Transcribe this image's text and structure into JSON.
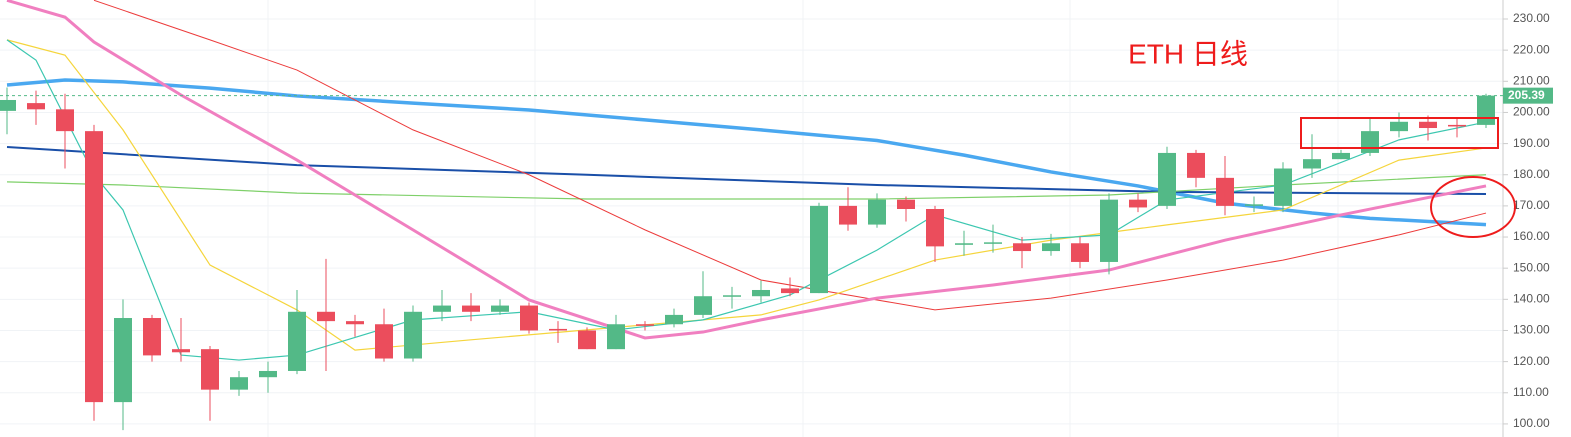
{
  "chart_data": {
    "type": "candlestick",
    "annotation": "ETH 日线",
    "up_color": "#53b987",
    "down_color": "#eb4d5c",
    "ylim": [
      95.8,
      236.1
    ],
    "yticks": [
      {
        "value": 100,
        "label": "100.00"
      },
      {
        "value": 110,
        "label": "110.00"
      },
      {
        "value": 120,
        "label": "120.00"
      },
      {
        "value": 130,
        "label": "130.00"
      },
      {
        "value": 140,
        "label": "140.00"
      },
      {
        "value": 150,
        "label": "150.00"
      },
      {
        "value": 160,
        "label": "160.00"
      },
      {
        "value": 170,
        "label": "170.00"
      },
      {
        "value": 180,
        "label": "180.00"
      },
      {
        "value": 190,
        "label": "190.00"
      },
      {
        "value": 200,
        "label": "200.00"
      },
      {
        "value": 210,
        "label": "210.00"
      },
      {
        "value": 220,
        "label": "220.00"
      },
      {
        "value": 230,
        "label": "230.00"
      }
    ],
    "grid": true,
    "last_price": 205.39,
    "categories": [
      null,
      null,
      null,
      null,
      null,
      null,
      null,
      null,
      null,
      null,
      null,
      null,
      null,
      null,
      null,
      null,
      null,
      null,
      null,
      null,
      null,
      null,
      null,
      null,
      null,
      null,
      null,
      null,
      null,
      null,
      null,
      null,
      null,
      null,
      null,
      null,
      null,
      null,
      null,
      null,
      null,
      null,
      null,
      null,
      null,
      null,
      null,
      null,
      null,
      null,
      null,
      null
    ],
    "open": [
      200.5,
      203,
      201,
      194,
      107,
      134,
      124,
      124,
      111,
      115,
      117,
      136,
      133,
      132,
      121,
      136,
      138,
      136,
      138,
      130.5,
      130,
      124,
      132,
      132,
      135,
      141,
      141,
      143.5,
      142,
      170,
      164,
      172,
      169,
      157.5,
      158,
      158,
      155.5,
      158,
      152,
      172,
      170,
      187,
      179,
      170,
      170,
      182,
      185,
      187,
      194,
      197,
      196,
      196
    ],
    "high": [
      208,
      207,
      206,
      196,
      140,
      135,
      134,
      125,
      117,
      120,
      143,
      153,
      135,
      137,
      138,
      143,
      142,
      140,
      139,
      133,
      131,
      135,
      133,
      137,
      149,
      144,
      146,
      147,
      171,
      176,
      174,
      173,
      170,
      162,
      164,
      160,
      161,
      160,
      174,
      174,
      189,
      188,
      186,
      173,
      184,
      193,
      188,
      198,
      200,
      199,
      198,
      206
    ],
    "low": [
      193,
      196,
      182,
      101,
      98,
      120,
      120,
      101,
      109,
      110,
      116,
      117,
      128,
      120,
      120,
      133,
      133,
      135,
      129,
      126,
      124,
      124,
      130,
      131,
      134,
      137,
      139,
      141,
      142,
      162,
      163,
      165,
      152,
      154,
      155,
      150,
      154,
      150,
      148,
      168,
      169,
      176,
      167,
      168,
      168,
      179,
      185,
      186,
      192,
      191,
      192,
      195
    ],
    "close": [
      204,
      201,
      194,
      107,
      134,
      122,
      123,
      111,
      115,
      117,
      136,
      133,
      132,
      121,
      136,
      138,
      136,
      138,
      130,
      130,
      124,
      132,
      131.5,
      135,
      141,
      141.3,
      143,
      142,
      170,
      164,
      172,
      169,
      157,
      158,
      158.3,
      155.5,
      158,
      152,
      172,
      169.5,
      187,
      179,
      170,
      170.5,
      182,
      185,
      187,
      194,
      197,
      195,
      195.5,
      205.39
    ],
    "lines": [
      {
        "color": "#4aa8f0",
        "width": 3.5,
        "x": [
          0,
          2,
          4,
          7,
          10,
          14,
          18,
          22,
          26,
          30,
          33,
          36,
          39,
          42,
          45,
          47,
          51
        ],
        "values": [
          208.8,
          210.4,
          209.8,
          207.8,
          205.3,
          203,
          200.8,
          197.6,
          194.4,
          191,
          186.3,
          180.9,
          176.4,
          170.9,
          167.7,
          166,
          164
        ]
      },
      {
        "color": "#1a4fa8",
        "width": 2,
        "x": [
          0,
          10,
          20,
          30,
          40,
          51
        ],
        "values": [
          188.9,
          183.1,
          180,
          176.7,
          174.5,
          173.8
        ]
      },
      {
        "color": "#7fd06a",
        "width": 1.2,
        "x": [
          0,
          4,
          10,
          20,
          30,
          38,
          44,
          51
        ],
        "values": [
          177.7,
          176.7,
          174.1,
          172.2,
          172.2,
          173.5,
          176.7,
          180
        ]
      },
      {
        "color": "#ec3b3b",
        "width": 1,
        "x": [
          3,
          7,
          10,
          14,
          18,
          22,
          26,
          30,
          32,
          36,
          40,
          44,
          48,
          51
        ],
        "values": [
          236,
          223.3,
          213.6,
          194.4,
          180,
          162.3,
          146.2,
          139.8,
          136.6,
          140.4,
          146.2,
          152.6,
          160.7,
          167.7
        ]
      },
      {
        "color": "#f5d53c",
        "width": 1.2,
        "x": [
          0,
          2,
          4,
          7,
          10,
          12,
          16,
          20,
          26,
          28,
          32,
          36,
          40,
          44,
          48,
          51
        ],
        "values": [
          223.3,
          218.4,
          194.4,
          151,
          136.6,
          123.7,
          127,
          130.2,
          135,
          139.8,
          152.6,
          159,
          163.9,
          168.7,
          184.7,
          188.6
        ]
      },
      {
        "color": "#3cc7b0",
        "width": 1.2,
        "x": [
          0,
          1,
          3,
          4,
          6,
          8,
          10,
          14,
          18,
          21,
          24,
          27,
          30,
          32,
          35,
          38,
          40,
          44,
          48,
          51
        ],
        "values": [
          223.3,
          216.8,
          180,
          168.7,
          122.1,
          120.5,
          122.1,
          133.4,
          136,
          130.2,
          133.4,
          141.4,
          155.8,
          167.1,
          159,
          160.7,
          171.9,
          176.7,
          191.2,
          196.9
        ]
      },
      {
        "color": "#f07fc0",
        "width": 3,
        "x": [
          0,
          2,
          3,
          6,
          10,
          14,
          18,
          22,
          24,
          26,
          30,
          34,
          38,
          42,
          46,
          51
        ],
        "values": [
          236,
          230.6,
          222.6,
          205.6,
          184.7,
          162.3,
          139.8,
          127.6,
          129.5,
          133.4,
          140.4,
          144.6,
          149.4,
          159,
          167.1,
          176.4
        ]
      }
    ]
  }
}
